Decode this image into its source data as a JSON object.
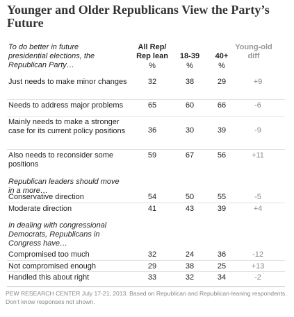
{
  "title": "Younger and Older Republicans View the Party’s Future",
  "columns": [
    {
      "label": "All Rep/ Rep lean",
      "unit": "%"
    },
    {
      "label": "18-39",
      "unit": "%"
    },
    {
      "label": "40+",
      "unit": "%"
    },
    {
      "label": "Young-old diff"
    }
  ],
  "sections": [
    {
      "label": "To do better in future presidential elections, the Republican Party…",
      "rows": [
        {
          "label": "Just needs to make minor changes",
          "values": [
            32,
            38,
            29
          ],
          "diff": "+9"
        },
        {
          "label": "Needs to address major problems",
          "values": [
            65,
            60,
            66
          ],
          "diff": "-6"
        },
        {
          "label": "Mainly needs to make a stronger case for its current policy positions",
          "values": [
            36,
            30,
            39
          ],
          "diff": "-9"
        },
        {
          "label": "Also needs to reconsider some positions",
          "values": [
            59,
            67,
            56
          ],
          "diff": "+11"
        }
      ]
    },
    {
      "label": "Republican leaders should move in a more…",
      "rows": [
        {
          "label": "Conservative direction",
          "values": [
            54,
            50,
            55
          ],
          "diff": "-5"
        },
        {
          "label": "Moderate direction",
          "values": [
            41,
            43,
            39
          ],
          "diff": "+4"
        }
      ]
    },
    {
      "label": "In dealing with congressional Democrats, Republicans in Congress have…",
      "rows": [
        {
          "label": "Compromised too much",
          "values": [
            32,
            24,
            36
          ],
          "diff": "-12"
        },
        {
          "label": "Not compromised enough",
          "values": [
            29,
            38,
            25
          ],
          "diff": "+13"
        },
        {
          "label": "Handled this about right",
          "values": [
            33,
            32,
            34
          ],
          "diff": "-2"
        }
      ]
    }
  ],
  "footnote": "PEW RESEARCH CENTER July 17-21, 2013. Based on Republican and Republican-leaning respondents. Don’t know responses not shown."
}
